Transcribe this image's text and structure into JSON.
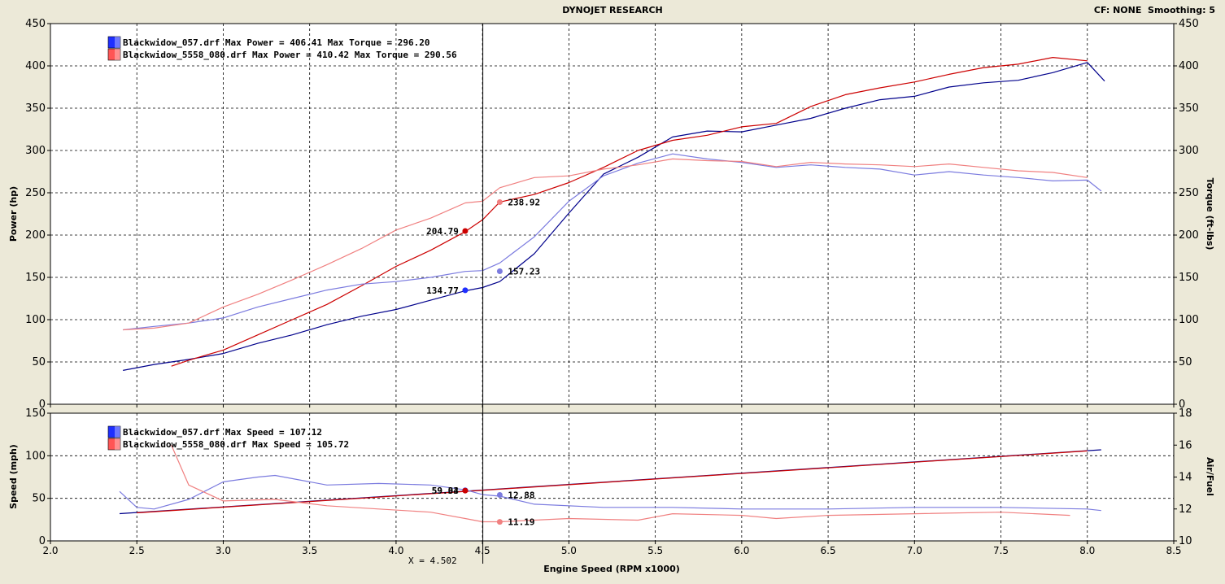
{
  "header": {
    "title": "DYNOJET RESEARCH",
    "settings": "CF: NONE  Smoothing: 5"
  },
  "cursor": {
    "label": "X = 4.502",
    "x": 4.502
  },
  "colors": {
    "run1_power": "#00008b",
    "run1_torque": "#7b7bdf",
    "run2_power": "#cc0000",
    "run2_torque": "#f08080",
    "run1_swatch": "#1f2fff",
    "run2_swatch": "#ff5555"
  },
  "chart_data": [
    {
      "type": "line",
      "title": "",
      "xlabel": "",
      "ylabel": "Power (hp)",
      "y2label": "Torque (ft-lbs)",
      "xlim": [
        2.0,
        8.5
      ],
      "ylim": [
        0,
        450
      ],
      "y2lim": [
        0,
        450
      ],
      "xticks": [
        "2.0",
        "2.5",
        "3.0",
        "3.5",
        "4.0",
        "4.5",
        "5.0",
        "5.5",
        "6.0",
        "6.5",
        "7.0",
        "7.5",
        "8.0",
        "8.5"
      ],
      "yticks": [
        "0",
        "50",
        "100",
        "150",
        "200",
        "250",
        "300",
        "350",
        "400",
        "450"
      ],
      "grid": true,
      "legend": [
        {
          "text": "Blackwidow_057.drf Max Power = 406.41 Max Torque = 296.20",
          "color": "#1f2fff"
        },
        {
          "text": "Blackwidow_5558_080.drf Max Power = 410.42 Max Torque = 290.56",
          "color": "#ff5555"
        }
      ],
      "series": [
        {
          "axis": "left",
          "color": "#00008b",
          "x": [
            2.42,
            2.6,
            2.8,
            3.0,
            3.2,
            3.4,
            3.6,
            3.8,
            4.0,
            4.2,
            4.4,
            4.5,
            4.6,
            4.8,
            5.0,
            5.2,
            5.4,
            5.6,
            5.8,
            6.0,
            6.2,
            6.4,
            6.6,
            6.8,
            7.0,
            7.2,
            7.4,
            7.6,
            7.8,
            8.0,
            8.1
          ],
          "y": [
            40,
            47,
            53,
            60,
            72,
            82,
            94,
            104,
            112,
            123,
            134,
            138,
            145,
            178,
            226,
            272,
            292,
            316,
            323,
            322,
            330,
            338,
            350,
            360,
            364,
            375,
            380,
            383,
            392,
            404,
            382
          ]
        },
        {
          "axis": "left",
          "color": "#cc0000",
          "x": [
            2.7,
            2.8,
            3.0,
            3.2,
            3.4,
            3.6,
            3.8,
            4.0,
            4.2,
            4.4,
            4.5,
            4.6,
            4.8,
            5.0,
            5.2,
            5.4,
            5.6,
            5.8,
            6.0,
            6.2,
            6.4,
            6.6,
            6.8,
            7.0,
            7.2,
            7.4,
            7.6,
            7.8,
            8.0
          ],
          "y": [
            45,
            52,
            64,
            82,
            100,
            118,
            140,
            163,
            182,
            204,
            218,
            239,
            248,
            262,
            280,
            300,
            312,
            318,
            328,
            332,
            352,
            366,
            374,
            381,
            390,
            398,
            402,
            410,
            406
          ]
        },
        {
          "axis": "right",
          "color": "#7b7bdf",
          "x": [
            2.42,
            2.6,
            2.8,
            3.0,
            3.2,
            3.4,
            3.6,
            3.8,
            4.0,
            4.2,
            4.4,
            4.5,
            4.6,
            4.8,
            5.0,
            5.2,
            5.4,
            5.6,
            5.8,
            6.0,
            6.2,
            6.4,
            6.6,
            6.8,
            7.0,
            7.2,
            7.4,
            7.6,
            7.8,
            8.0,
            8.08
          ],
          "y": [
            88,
            92,
            96,
            102,
            115,
            125,
            135,
            142,
            145,
            150,
            157,
            158,
            167,
            198,
            240,
            270,
            285,
            296,
            290,
            286,
            280,
            283,
            280,
            278,
            271,
            275,
            271,
            268,
            264,
            265,
            252
          ]
        },
        {
          "axis": "right",
          "color": "#f08080",
          "x": [
            2.42,
            2.6,
            2.8,
            3.0,
            3.2,
            3.4,
            3.6,
            3.8,
            4.0,
            4.2,
            4.4,
            4.5,
            4.6,
            4.8,
            5.0,
            5.2,
            5.4,
            5.6,
            5.8,
            6.0,
            6.2,
            6.4,
            6.6,
            6.8,
            7.0,
            7.2,
            7.4,
            7.6,
            7.8,
            8.0
          ],
          "y": [
            88,
            90,
            96,
            115,
            130,
            147,
            165,
            184,
            206,
            220,
            238,
            240,
            256,
            268,
            270,
            278,
            283,
            290,
            288,
            287,
            281,
            286,
            284,
            283,
            281,
            284,
            280,
            276,
            274,
            268
          ]
        }
      ],
      "markers": [
        {
          "x": 4.4,
          "y": 204.79,
          "label": "204.79",
          "color": "#cc0000",
          "side": "left"
        },
        {
          "x": 4.4,
          "y": 134.77,
          "label": "134.77",
          "color": "#1f2fff",
          "side": "left"
        },
        {
          "x": 4.6,
          "y": 238.92,
          "label": "238.92",
          "color": "#f08080",
          "side": "right"
        },
        {
          "x": 4.6,
          "y": 157.23,
          "label": "157.23",
          "color": "#7b7bdf",
          "side": "right"
        }
      ]
    },
    {
      "type": "line",
      "title": "",
      "xlabel": "Engine Speed (RPM x1000)",
      "ylabel": "Speed (mph)",
      "y2label": "Air/Fuel",
      "xlim": [
        2.0,
        8.5
      ],
      "ylim": [
        0,
        150
      ],
      "y2lim": [
        10,
        18
      ],
      "xticks": [
        "2.0",
        "2.5",
        "3.0",
        "3.5",
        "4.0",
        "4.5",
        "5.0",
        "5.5",
        "6.0",
        "6.5",
        "7.0",
        "7.5",
        "8.0",
        "8.5"
      ],
      "yticks": [
        "0",
        "50",
        "100",
        "150"
      ],
      "y2ticks": [
        "10",
        "12",
        "14",
        "16",
        "18"
      ],
      "grid": true,
      "legend": [
        {
          "text": "Blackwidow_057.drf Max Speed = 107.12",
          "color": "#1f2fff"
        },
        {
          "text": "Blackwidow_5558_080.drf Max Speed = 105.72",
          "color": "#ff5555"
        }
      ],
      "series": [
        {
          "axis": "left",
          "color": "#00008b",
          "x": [
            2.4,
            8.08
          ],
          "y": [
            32,
            107
          ]
        },
        {
          "axis": "left",
          "color": "#cc0000",
          "x": [
            2.5,
            8.0
          ],
          "y": [
            33,
            105.7
          ]
        },
        {
          "axis": "right",
          "color": "#7b7bdf",
          "x": [
            2.4,
            2.5,
            2.6,
            2.8,
            3.0,
            3.2,
            3.3,
            3.6,
            3.9,
            4.2,
            4.4,
            4.5,
            4.6,
            4.8,
            5.2,
            5.6,
            6.0,
            6.5,
            7.0,
            7.5,
            8.0,
            8.08
          ],
          "y": [
            13.1,
            12.1,
            12.0,
            12.6,
            13.7,
            14.0,
            14.1,
            13.5,
            13.6,
            13.5,
            13.2,
            12.9,
            12.8,
            12.3,
            12.1,
            12.1,
            12.0,
            12.0,
            12.1,
            12.1,
            12.0,
            11.9
          ]
        },
        {
          "axis": "right",
          "color": "#f08080",
          "x": [
            2.7,
            2.8,
            3.0,
            3.3,
            3.6,
            3.9,
            4.2,
            4.4,
            4.5,
            4.6,
            5.0,
            5.4,
            5.6,
            6.0,
            6.2,
            6.5,
            7.0,
            7.5,
            7.9
          ],
          "y": [
            16.0,
            13.5,
            12.5,
            12.6,
            12.2,
            12.0,
            11.8,
            11.4,
            11.2,
            11.2,
            11.4,
            11.3,
            11.7,
            11.6,
            11.4,
            11.6,
            11.7,
            11.8,
            11.6
          ]
        }
      ],
      "markers": [
        {
          "x": 4.4,
          "y": 59.33,
          "label": "59.33",
          "color": "#1f2fff",
          "side": "left"
        },
        {
          "x": 4.4,
          "y": 59.04,
          "label": "59.04",
          "color": "#cc0000",
          "side": "left"
        },
        {
          "x": 4.6,
          "y": 12.88,
          "label": "12.88",
          "color": "#7b7bdf",
          "side": "right"
        },
        {
          "x": 4.6,
          "y": 11.19,
          "label": "11.19",
          "color": "#f08080",
          "side": "right"
        }
      ]
    }
  ]
}
